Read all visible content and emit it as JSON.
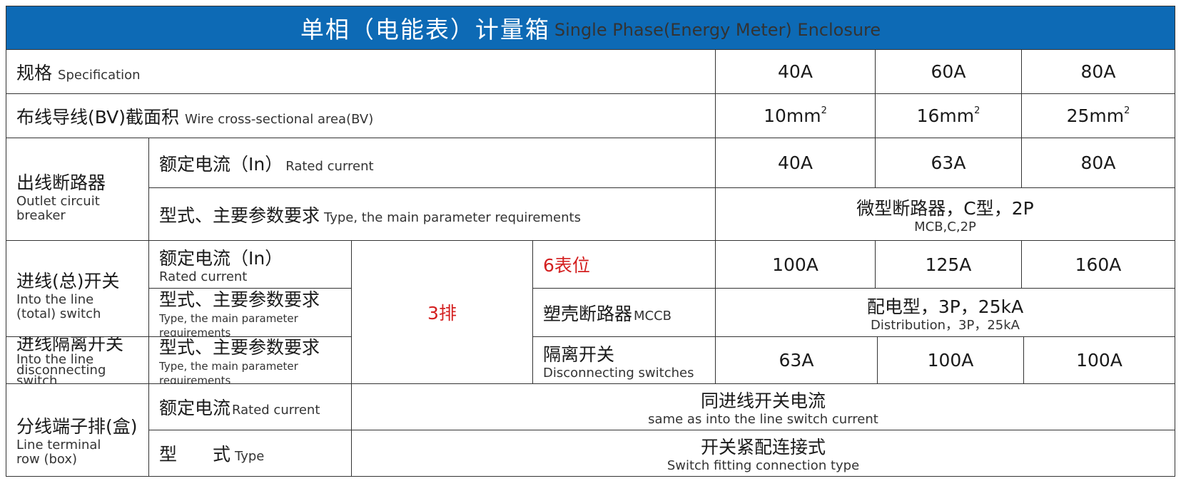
{
  "title": {
    "zh": "单相（电能表）计量箱",
    "en": "Single Phase(Energy Meter) Enclosure"
  },
  "rows": {
    "spec": {
      "zh": "规格",
      "en": "Specification",
      "values": [
        "40A",
        "60A",
        "80A"
      ]
    },
    "wire": {
      "zh": "布线导线(BV)截面积",
      "en": "Wire cross-sectional area(BV)",
      "values": [
        "10mm",
        "16mm",
        "25mm"
      ],
      "sup": "2"
    },
    "outlet": {
      "zh": "出线断路器",
      "en_line1": "Outlet circuit",
      "en_line2": "breaker",
      "rated": {
        "zh": "额定电流（In）",
        "en": "Rated current",
        "values": [
          "40A",
          "63A",
          "80A"
        ]
      },
      "type": {
        "zh": "型式、主要参数要求",
        "en": "Type, the main parameter requirements",
        "value_zh": "微型断路器，C型，2P",
        "value_en": "MCB,C,2P"
      }
    },
    "inlet": {
      "zh": "进线(总)开关",
      "en_line1": "Into the line",
      "en_line2": "(total) switch",
      "rated": {
        "zh": "额定电流（In）",
        "en": "Rated current",
        "values": [
          "100A",
          "125A",
          "160A"
        ]
      },
      "type": {
        "zh": "型式、主要参数要求",
        "en": "Type, the main parameter requirements",
        "mccb_zh": "塑壳断路器",
        "mccb_en": "MCCB",
        "value_zh": "配电型，3P，25kA",
        "value_en": "Distribution，3P，25kA"
      }
    },
    "isolator": {
      "zh": "进线隔离开关",
      "en_line1": "Into the line",
      "en_line2": "disconnecting switch",
      "type": {
        "zh": "型式、主要参数要求",
        "en": "Type, the main parameter requirements"
      },
      "switch_zh": "隔离开关",
      "switch_en": "Disconnecting switches",
      "values": [
        "63A",
        "100A",
        "100A"
      ]
    },
    "rows_label": "3排",
    "meter_label": "6表位",
    "terminal": {
      "zh": "分线端子排(盒)",
      "en_line1": "Line terminal",
      "en_line2": "row (box)",
      "rated": {
        "zh": "额定电流",
        "en": "Rated current",
        "value_zh": "同进线开关电流",
        "value_en": "same as into the line switch current"
      },
      "type": {
        "zh": "型　　式",
        "en": "Type",
        "value_zh": "开关紧配连接式",
        "value_en": "Switch fitting connection type"
      }
    }
  }
}
